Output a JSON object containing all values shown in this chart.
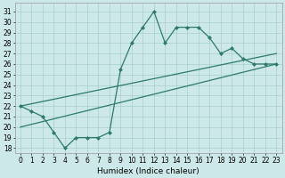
{
  "title": "",
  "xlabel": "Humidex (Indice chaleur)",
  "bg_color": "#cce8e8",
  "line_color": "#2d7a6a",
  "x_data": [
    0,
    1,
    2,
    3,
    4,
    5,
    6,
    7,
    8,
    9,
    10,
    11,
    12,
    13,
    14,
    15,
    16,
    17,
    18,
    19,
    20,
    21,
    22,
    23
  ],
  "y_main": [
    22,
    21.5,
    21,
    19.5,
    18,
    19,
    19,
    19,
    19.5,
    25.5,
    28,
    29.5,
    31,
    28,
    29.5,
    29.5,
    29.5,
    28.5,
    27,
    27.5,
    26.5,
    26,
    26,
    26
  ],
  "trend1_x": [
    0,
    23
  ],
  "trend1_y": [
    22,
    27
  ],
  "trend2_x": [
    0,
    23
  ],
  "trend2_y": [
    20,
    26
  ],
  "xlim": [
    -0.5,
    23.5
  ],
  "ylim": [
    17.5,
    31.8
  ],
  "yticks": [
    18,
    19,
    20,
    21,
    22,
    23,
    24,
    25,
    26,
    27,
    28,
    29,
    30,
    31
  ],
  "xticks": [
    0,
    1,
    2,
    3,
    4,
    5,
    6,
    7,
    8,
    9,
    10,
    11,
    12,
    13,
    14,
    15,
    16,
    17,
    18,
    19,
    20,
    21,
    22,
    23
  ],
  "xlabel_fontsize": 6.5,
  "tick_fontsize": 5.5,
  "linewidth": 0.9,
  "markersize": 2.5
}
